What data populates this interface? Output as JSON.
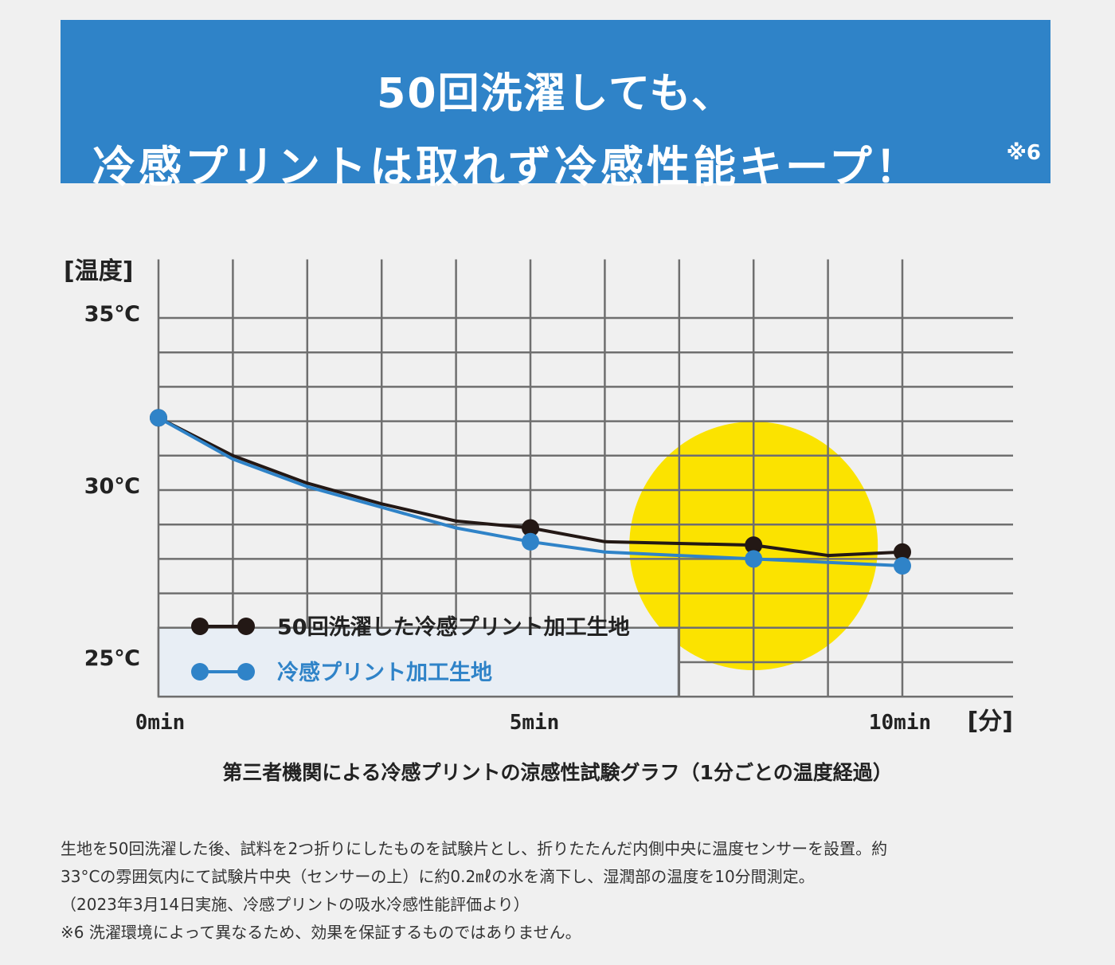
{
  "banner": {
    "line1": "50回洗濯しても、",
    "line2": "冷感プリントは取れず冷感性能キープ！",
    "note": "※6"
  },
  "chart_data": {
    "type": "line",
    "title": "第三者機関による冷感プリントの涼感性試験グラフ（1分ごとの温度経過）",
    "ylabel": "[温度]",
    "xlabel": "[分]",
    "x": [
      0,
      1,
      2,
      3,
      4,
      5,
      6,
      7,
      8,
      9,
      10
    ],
    "xlim": [
      0,
      10
    ],
    "ylim": [
      24,
      36.7
    ],
    "ytick_labels": [
      {
        "value": 35,
        "label": "35℃"
      },
      {
        "value": 30,
        "label": "30℃"
      },
      {
        "value": 25,
        "label": "25℃"
      }
    ],
    "xtick_labels": [
      {
        "value": 0,
        "label": "0min"
      },
      {
        "value": 5,
        "label": "5min"
      },
      {
        "value": 10,
        "label": "10min"
      }
    ],
    "grid": true,
    "marker_x": [
      0,
      5,
      8,
      10
    ],
    "highlight_x": 8,
    "series": [
      {
        "name": "50回洗濯した冷感プリント加工生地",
        "color": "#231815",
        "values": [
          32.1,
          31.0,
          30.2,
          29.6,
          29.1,
          28.9,
          28.5,
          28.45,
          28.4,
          28.1,
          28.2
        ]
      },
      {
        "name": "冷感プリント加工生地",
        "color": "#2f83c8",
        "values": [
          32.1,
          30.9,
          30.1,
          29.5,
          28.9,
          28.5,
          28.2,
          28.1,
          28.0,
          27.9,
          27.8
        ]
      }
    ],
    "legend_position": "bottom-left"
  },
  "footnote": {
    "lines": [
      "生地を50回洗濯した後、試料を2つ折りにしたものを試験片とし、折りたたんだ内側中央に温度センサーを設置。約",
      "33°Cの雰囲気内にて試験片中央（センサーの上）に約0.2㎖の水を滴下し、湿潤部の温度を10分間測定。",
      "（2023年3月14日実施、冷感プリントの吸水冷感性能評価より）",
      "※6 洗濯環境によって異なるため、効果を保証するものではありません。"
    ]
  }
}
